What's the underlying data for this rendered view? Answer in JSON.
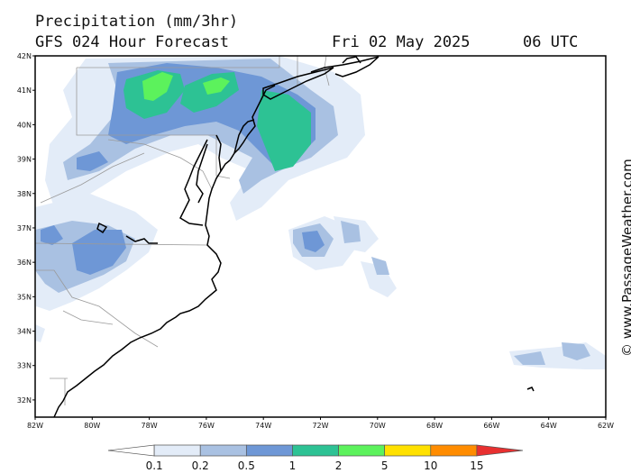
{
  "header": {
    "title": "Precipitation (mm/3hr)",
    "subtitle": "GFS 024 Hour Forecast",
    "date": "Fri 02 May 2025",
    "time": "06 UTC"
  },
  "credit": "© www.PassageWeather.com",
  "map": {
    "lat_labels": [
      "42N",
      "41N",
      "40N",
      "39N",
      "38N",
      "37N",
      "36N",
      "35N",
      "34N",
      "33N",
      "32N"
    ],
    "lon_labels": [
      "82W",
      "80W",
      "78W",
      "76W",
      "74W",
      "72W",
      "70W",
      "68W",
      "66W",
      "64W",
      "62W"
    ],
    "extent": {
      "lon_min": -82,
      "lon_max": -62,
      "lat_min": 31.5,
      "lat_max": 42
    }
  },
  "legend": {
    "thresholds": [
      "0.1",
      "0.2",
      "0.5",
      "1",
      "2",
      "5",
      "10",
      "15"
    ],
    "colors": [
      "#ffffff",
      "#e3ecf8",
      "#a9c1e2",
      "#6e97d6",
      "#2dc294",
      "#5cf25c",
      "#ffe100",
      "#ff8c00",
      "#e83030"
    ]
  }
}
